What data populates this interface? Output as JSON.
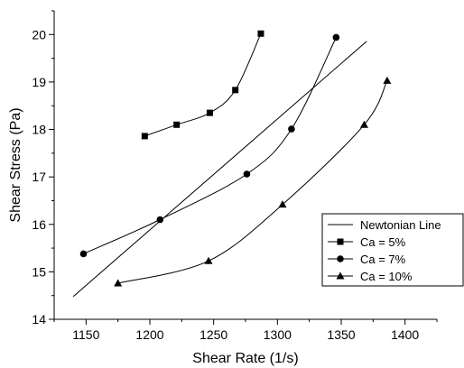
{
  "chart_data": {
    "type": "scatter",
    "title": "",
    "xlabel": "Shear Rate (1/s)",
    "ylabel": "Shear Stress (Pa)",
    "xlim": [
      1125,
      1425
    ],
    "ylim": [
      14,
      20.5
    ],
    "xticks": [
      1150,
      1200,
      1250,
      1300,
      1350,
      1400
    ],
    "yticks": [
      14,
      15,
      16,
      17,
      18,
      19,
      20
    ],
    "grid": false,
    "legend_position": "bottom-right",
    "series": [
      {
        "name": "Newtonian Line",
        "kind": "line",
        "marker": "none",
        "x": [
          1140,
          1370
        ],
        "y": [
          14.48,
          19.86
        ]
      },
      {
        "name": "Ca = 5%",
        "kind": "line+marker",
        "marker": "square",
        "x": [
          1196,
          1221,
          1247,
          1267,
          1287
        ],
        "y": [
          17.86,
          18.1,
          18.35,
          18.83,
          20.02
        ]
      },
      {
        "name": "Ca = 7%",
        "kind": "line+marker",
        "marker": "circle",
        "x": [
          1148,
          1208,
          1276,
          1311,
          1346
        ],
        "y": [
          15.38,
          16.1,
          17.06,
          18.01,
          19.94
        ]
      },
      {
        "name": "Ca = 10%",
        "kind": "line+marker",
        "marker": "triangle",
        "x": [
          1175,
          1246,
          1304,
          1368,
          1386
        ],
        "y": [
          14.76,
          15.23,
          16.42,
          18.1,
          19.03
        ]
      }
    ]
  }
}
